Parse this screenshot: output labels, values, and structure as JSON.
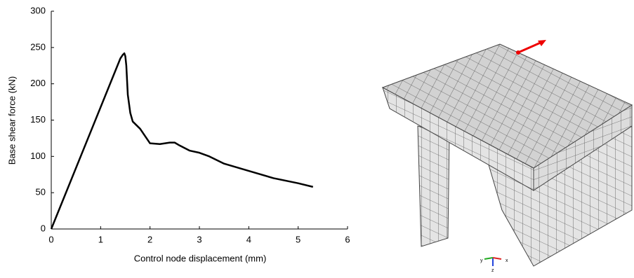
{
  "chart_data": {
    "type": "line",
    "xlabel": "Control node displacement (mm)",
    "ylabel": "Base shear force (kN)",
    "x": [
      0,
      1.4,
      1.45,
      1.48,
      1.5,
      1.52,
      1.55,
      1.6,
      1.65,
      1.8,
      1.9,
      2.0,
      2.2,
      2.4,
      2.5,
      2.6,
      2.8,
      3.0,
      3.2,
      3.5,
      4.0,
      4.5,
      5.0,
      5.3
    ],
    "values": [
      0,
      235,
      240,
      242,
      238,
      225,
      185,
      160,
      148,
      138,
      128,
      118,
      117,
      119,
      119,
      115,
      108,
      105,
      100,
      90,
      80,
      70,
      63,
      58
    ],
    "color": "#000000",
    "xlim": [
      0,
      6
    ],
    "xticks": [
      0,
      1,
      2,
      3,
      4,
      5,
      6
    ],
    "ylim": [
      0,
      300
    ],
    "yticks": [
      0,
      50,
      100,
      150,
      200,
      250,
      300
    ]
  },
  "mesh_axes": [
    "y",
    "x",
    "z"
  ]
}
